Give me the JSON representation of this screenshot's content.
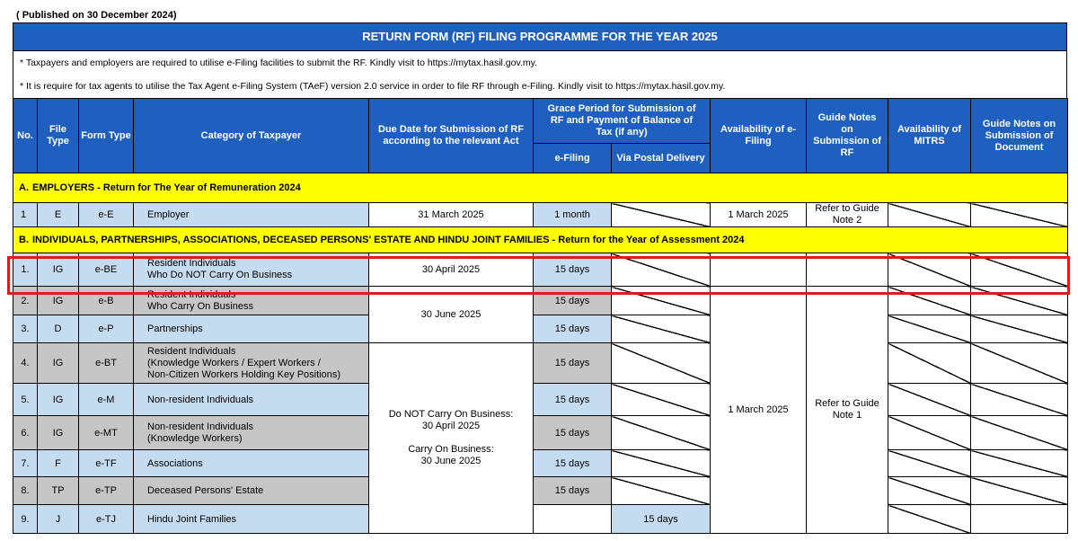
{
  "published": "( Published on 30 December 2024)",
  "title": "RETURN FORM (RF) FILING PROGRAMME FOR THE YEAR 2025",
  "notes": [
    "*  Taxpayers and employers are required to utilise e-Filing facilities  to submit the RF. Kindly visit to https://mytax.hasil.gov.my.",
    "*  It is require for tax agents to utilise the Tax Agent e-Filing System (TAeF) version 2.0 service in order to file RF through e-Filing. Kindly visit to https://mytax.hasil.gov.my."
  ],
  "headers": {
    "no": "No.",
    "file_type": "File Type",
    "form_type": "Form Type",
    "category": "Category of Taxpayer",
    "due_date": "Due Date for Submission of RF according to the relevant Act",
    "grace": "Grace Period for Submission of RF and Payment of Balance of Tax (if any)",
    "efiling": "e-Filing",
    "postal": "Via Postal Delivery",
    "avail_efiling": "Availability of e-Filing",
    "guide_rf": "Guide Notes on Submission of RF",
    "mitrs": "Availability of MITRS",
    "guide_doc": "Guide Notes on Submission of Document"
  },
  "section_a": {
    "letter": "A.",
    "label": "EMPLOYERS - Return for The Year of Remuneration 2024"
  },
  "employer_row": {
    "no": "1",
    "file_type": "E",
    "form_type": "e-E",
    "category": "Employer",
    "due_date": "31 March 2025",
    "grace": "1 month",
    "avail_efiling": "1 March 2025",
    "guide": "Refer to Guide Note 2"
  },
  "section_b": {
    "letter": "B.",
    "label": "INDIVIDUALS, PARTNERSHIPS, ASSOCIATIONS, DECEASED PERSONS' ESTATE AND HINDU JOINT FAMILIES - Return for the Year of Assessment 2024"
  },
  "rows": [
    {
      "no": "1.",
      "file_type": "IG",
      "form_type": "e-BE",
      "category": [
        "Resident Individuals",
        "Who Do NOT Carry On Business"
      ],
      "grace": "15 days"
    },
    {
      "no": "2.",
      "file_type": "IG",
      "form_type": "e-B",
      "category": [
        "Resident Individuals",
        "Who Carry On Business"
      ],
      "grace": "15 days"
    },
    {
      "no": "3.",
      "file_type": "D",
      "form_type": "e-P",
      "category": [
        "Partnerships"
      ],
      "grace": "15 days"
    },
    {
      "no": "4.",
      "file_type": "IG",
      "form_type": "e-BT",
      "category": [
        "Resident Individuals",
        "(Knowledge Workers / Expert Workers /",
        "Non-Citizen Workers Holding Key Positions)"
      ],
      "grace": "15 days"
    },
    {
      "no": "5.",
      "file_type": "IG",
      "form_type": "e-M",
      "category": [
        "Non-resident Individuals"
      ],
      "grace": "15 days"
    },
    {
      "no": "6.",
      "file_type": "IG",
      "form_type": "e-MT",
      "category": [
        "Non-resident Individuals",
        "(Knowledge Workers)"
      ],
      "grace": "15 days"
    },
    {
      "no": "7.",
      "file_type": "F",
      "form_type": "e-TF",
      "category": [
        "Associations"
      ],
      "grace": "15 days"
    },
    {
      "no": "8.",
      "file_type": "TP",
      "form_type": "e-TP",
      "category": [
        "Deceased Persons' Estate"
      ],
      "grace": "15 days"
    },
    {
      "no": "9.",
      "file_type": "J",
      "form_type": "e-TJ",
      "category": [
        "Hindu Joint Families"
      ],
      "grace": "15 days"
    }
  ],
  "due_dates": {
    "row1": "30 April 2025",
    "rows2_3": "30 June 2025",
    "rows4_9": [
      "Do NOT Carry On Business:",
      "30 April 2025",
      "",
      "Carry On Business:",
      "30 June 2025"
    ]
  },
  "avail_efiling_b": "1 March 2025",
  "guide_b": "Refer to Guide Note 1",
  "colors": {
    "header_blue": "#1f5fbf",
    "section_yellow": "#ffff00",
    "highlight_red": "#e01b1b",
    "cell_blue": "#c5dcf0",
    "cell_grey": "#c6c6c6"
  }
}
